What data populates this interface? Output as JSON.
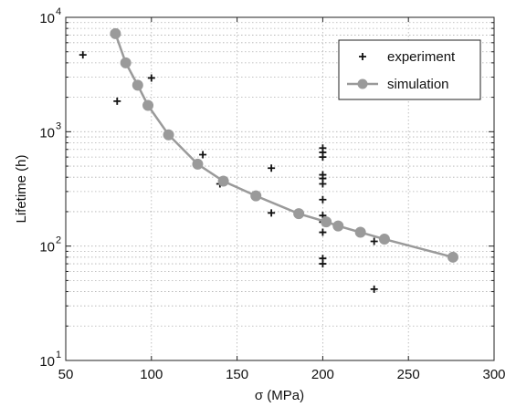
{
  "chart_data": {
    "type": "scatter",
    "xlabel": "σ (MPa)",
    "ylabel": "Lifetime (h)",
    "xlim": [
      50,
      300
    ],
    "ylim": [
      10,
      10000
    ],
    "yscale": "log",
    "grid": true,
    "legend_position": "top-right",
    "x_ticks": [
      50,
      100,
      150,
      200,
      250,
      300
    ],
    "x_tick_labels": [
      "50",
      "100",
      "150",
      "200",
      "250",
      "300"
    ],
    "y_ticks": [
      10,
      100,
      1000,
      10000
    ],
    "y_tick_labels": [
      {
        "base": "10",
        "exp": "1"
      },
      {
        "base": "10",
        "exp": "2"
      },
      {
        "base": "10",
        "exp": "3"
      },
      {
        "base": "10",
        "exp": "4"
      }
    ],
    "series": [
      {
        "name": "experiment",
        "marker": "plus",
        "color": "#111111",
        "points": [
          [
            60,
            4700
          ],
          [
            80,
            1850
          ],
          [
            100,
            2950
          ],
          [
            130,
            630
          ],
          [
            140,
            350
          ],
          [
            170,
            480
          ],
          [
            170,
            195
          ],
          [
            200,
            720
          ],
          [
            200,
            660
          ],
          [
            200,
            600
          ],
          [
            200,
            420
          ],
          [
            200,
            390
          ],
          [
            200,
            350
          ],
          [
            200,
            255
          ],
          [
            200,
            185
          ],
          [
            200,
            162
          ],
          [
            200,
            132
          ],
          [
            200,
            78
          ],
          [
            200,
            70
          ],
          [
            230,
            110
          ],
          [
            230,
            42
          ]
        ]
      },
      {
        "name": "simulation",
        "marker": "circle",
        "color": "#9a9a9a",
        "points": [
          [
            79,
            7200
          ],
          [
            85,
            4000
          ],
          [
            92,
            2550
          ],
          [
            98,
            1700
          ],
          [
            110,
            940
          ],
          [
            127,
            520
          ],
          [
            142,
            370
          ],
          [
            161,
            275
          ],
          [
            186,
            192
          ],
          [
            202,
            163
          ],
          [
            209,
            150
          ],
          [
            222,
            132
          ],
          [
            236,
            115
          ],
          [
            276,
            80
          ]
        ]
      }
    ]
  }
}
